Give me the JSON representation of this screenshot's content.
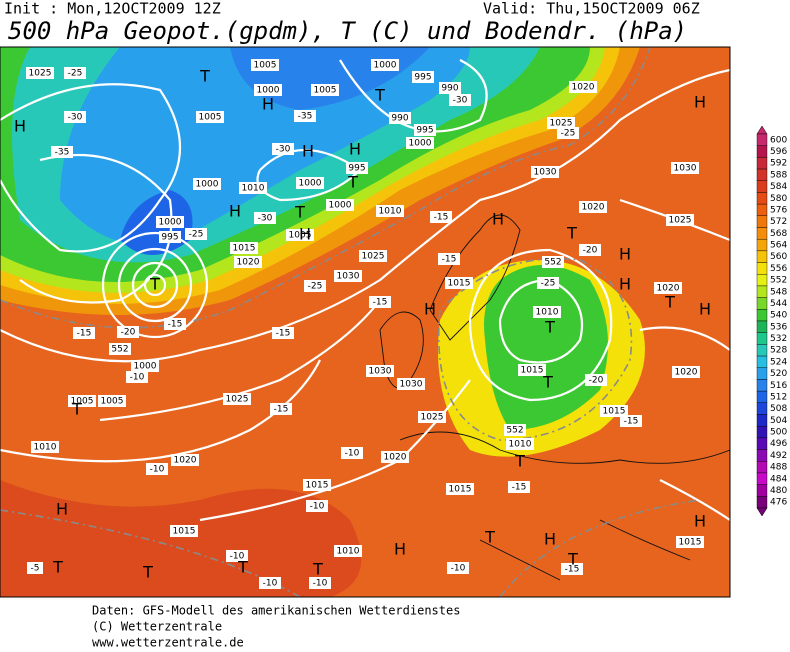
{
  "header": {
    "init": "Init : Mon,12OCT2009 12Z",
    "valid": "Valid: Thu,15OCT2009 06Z",
    "title": "500 hPa Geopot.(gpdm), T (C) und Bodendr. (hPa)"
  },
  "footer": {
    "lines": [
      "Daten: GFS-Modell des amerikanischen Wetterdienstes",
      "(C) Wetterzentrale",
      "www.wetterzentrale.de"
    ]
  },
  "colorbar": {
    "levels": [
      600,
      596,
      592,
      588,
      584,
      580,
      576,
      572,
      568,
      564,
      560,
      556,
      552,
      548,
      544,
      540,
      536,
      532,
      528,
      524,
      520,
      516,
      512,
      508,
      504,
      500,
      496,
      492,
      488,
      484,
      480,
      476
    ],
    "colors": [
      "#c8286e",
      "#b4144b",
      "#c82837",
      "#d23228",
      "#dc3c1e",
      "#e64b14",
      "#eb5f0f",
      "#f0780a",
      "#f58c0a",
      "#f5a50a",
      "#f5c30a",
      "#f5e10a",
      "#e6f014",
      "#b4e61e",
      "#78d728",
      "#3cc832",
      "#1eb45a",
      "#1ec88c",
      "#28c8b9",
      "#28bee1",
      "#28a0eb",
      "#2882eb",
      "#1e64e6",
      "#1e46dc",
      "#1e2ac8",
      "#3214b4",
      "#5a0ab4",
      "#8c0ab4",
      "#b40ab4",
      "#c80ac8",
      "#a000a0",
      "#780078"
    ]
  },
  "map": {
    "box_labels": [
      "1025",
      "-25",
      "1005",
      "1000",
      "1005",
      "1000",
      "995",
      "990",
      "-30",
      "995",
      "990",
      "1000",
      "1005",
      "-35",
      "-30",
      "-35",
      "-30",
      "995",
      "1000",
      "1010",
      "1000",
      "-30",
      "1005",
      "1000",
      "1010",
      "1030",
      "1025",
      "-25",
      "1020",
      "1030",
      "1025",
      "1020",
      "1000",
      "995",
      "-25",
      "1015",
      "1020",
      "1025",
      "1030",
      "-25",
      "-15",
      "-20",
      "-15",
      "-15",
      "-15",
      "1030",
      "1030",
      "1025",
      "-15",
      "1025",
      "1000",
      "-10",
      "1005",
      "1005",
      "1010",
      "1020",
      "-10",
      "1020",
      "-10",
      "1015",
      "-10",
      "1015",
      "1010",
      "1015",
      "-15",
      "1010",
      "1015",
      "1010",
      "-25",
      "-20",
      "1015",
      "-15",
      "1020",
      "1020",
      "-20",
      "552",
      "552",
      "552",
      "-10",
      "-10",
      "-10",
      "-10",
      "-15",
      "1015",
      "-5",
      "1015",
      "-15",
      "-15"
    ],
    "centers": [
      "H",
      "H",
      "H",
      "H",
      "H",
      "H",
      "H",
      "H",
      "H",
      "H",
      "H",
      "H",
      "H",
      "H",
      "H",
      "H",
      "T",
      "T",
      "T",
      "T",
      "T",
      "T",
      "T",
      "T",
      "T",
      "T",
      "T",
      "T",
      "T",
      "T",
      "T",
      "T",
      "T"
    ]
  }
}
